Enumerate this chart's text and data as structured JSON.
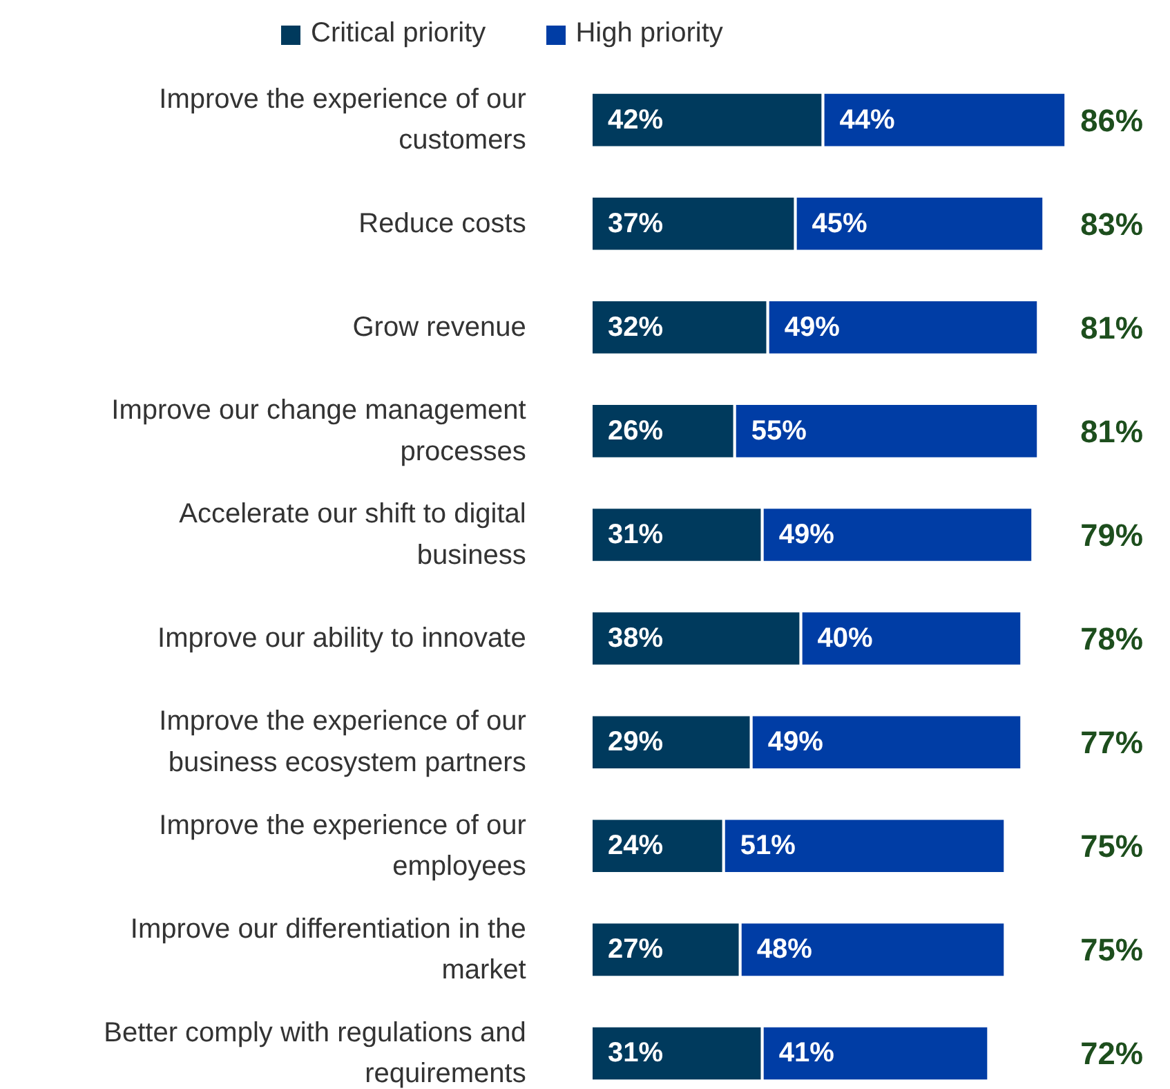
{
  "chart_data": {
    "type": "bar",
    "orientation": "horizontal",
    "stacked": true,
    "legend": "top",
    "categories": [
      "Improve the experience of our\ncustomers",
      "Reduce costs",
      "Grow revenue",
      "Improve our change management\nprocesses",
      "Accelerate our shift to digital\nbusiness",
      "Improve our ability to innovate",
      "Improve the experience of our\nbusiness ecosystem partners",
      "Improve the experience of our\nemployees",
      "Improve our differentiation in the\nmarket",
      "Better comply with regulations and\nrequirements"
    ],
    "series": [
      {
        "name": "Critical priority",
        "color": "#003a5d",
        "values": [
          42,
          37,
          32,
          26,
          31,
          38,
          29,
          24,
          27,
          31
        ],
        "value_labels": [
          "42%",
          "37%",
          "32%",
          "26%",
          "31%",
          "38%",
          "29%",
          "24%",
          "27%",
          "31%"
        ]
      },
      {
        "name": "High priority",
        "color": "#003da5",
        "values": [
          44,
          45,
          49,
          55,
          49,
          40,
          49,
          51,
          48,
          41
        ],
        "value_labels": [
          "44%",
          "45%",
          "49%",
          "55%",
          "49%",
          "40%",
          "49%",
          "51%",
          "48%",
          "41%"
        ]
      }
    ],
    "totals": [
      "86%",
      "83%",
      "81%",
      "81%",
      "79%",
      "78%",
      "77%",
      "75%",
      "75%",
      "72%"
    ]
  }
}
